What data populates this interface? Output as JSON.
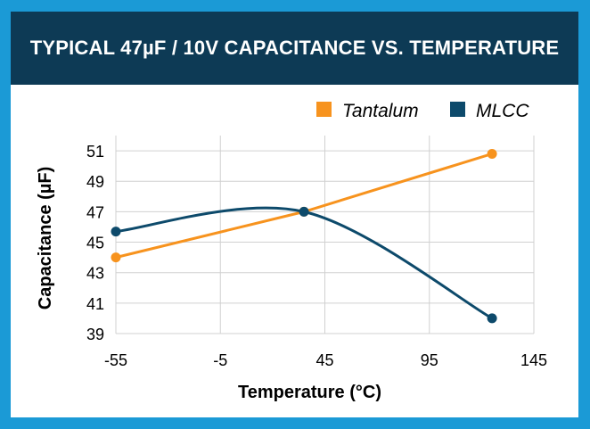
{
  "chart_data": {
    "type": "line",
    "title": "TYPICAL 47µF / 10V CAPACITANCE VS. TEMPERATURE",
    "xlabel": "Temperature (°C)",
    "ylabel": "Capacitance (µF)",
    "xlim": [
      -55,
      145
    ],
    "ylim": [
      39,
      52
    ],
    "x_ticks": [
      "-55",
      "-5",
      "45",
      "95",
      "145"
    ],
    "x_tick_values": [
      -55,
      -5,
      45,
      95,
      145
    ],
    "y_ticks": [
      "51",
      "49",
      "47",
      "45",
      "43",
      "41",
      "39"
    ],
    "y_tick_values": [
      51,
      49,
      47,
      45,
      43,
      41,
      39
    ],
    "grid": true,
    "legend_position": "top-right",
    "series": [
      {
        "name": "Tantalum",
        "color": "#f7931e",
        "smooth": false,
        "x": [
          -55,
          35,
          125
        ],
        "values": [
          44.0,
          47.0,
          50.8
        ]
      },
      {
        "name": "MLCC",
        "color": "#0d4a6b",
        "smooth": true,
        "x": [
          -55,
          35,
          125
        ],
        "values": [
          45.7,
          47.0,
          40.0
        ]
      }
    ]
  }
}
